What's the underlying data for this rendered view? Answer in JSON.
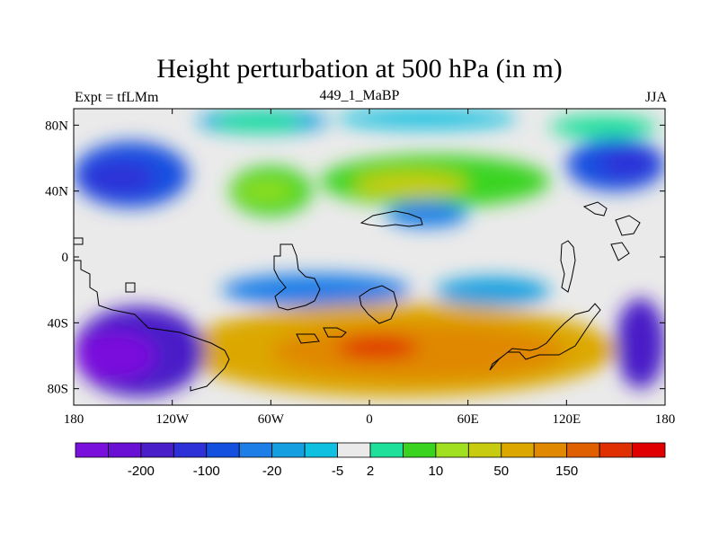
{
  "figure": {
    "title": "Height perturbation at 500 hPa (in m)",
    "subtitle_left": "Expt = tfLMm",
    "subtitle_center": "449_1_MaBP",
    "subtitle_right": "JJA"
  },
  "chart_data": {
    "type": "heatmap",
    "title": "Height perturbation at 500 hPa (in m)",
    "xlabel": "",
    "ylabel": "",
    "xlim": [
      -180,
      180
    ],
    "ylim": [
      -90,
      90
    ],
    "x_ticks": [
      {
        "value": -180,
        "label": "180"
      },
      {
        "value": -120,
        "label": "120W"
      },
      {
        "value": -60,
        "label": "60W"
      },
      {
        "value": 0,
        "label": "0"
      },
      {
        "value": 60,
        "label": "60E"
      },
      {
        "value": 120,
        "label": "120E"
      },
      {
        "value": 180,
        "label": "180"
      }
    ],
    "y_ticks": [
      {
        "value": 80,
        "label": "80N"
      },
      {
        "value": 40,
        "label": "40N"
      },
      {
        "value": 0,
        "label": "0"
      },
      {
        "value": -40,
        "label": "40S"
      },
      {
        "value": -80,
        "label": "80S"
      }
    ],
    "colorbar": {
      "colors": [
        "#7a10dc",
        "#6a10d4",
        "#4a1ec8",
        "#2e30d8",
        "#1450e0",
        "#1e7ee8",
        "#14a0e0",
        "#10c0e0",
        "#eaeaea",
        "#1ee09a",
        "#3ad420",
        "#a0e020",
        "#c8cc10",
        "#dca800",
        "#e08800",
        "#e06000",
        "#e03000",
        "#e00000"
      ],
      "labels": [
        {
          "after_index": 1,
          "text": "-200"
        },
        {
          "after_index": 3,
          "text": "-100"
        },
        {
          "after_index": 5,
          "text": "-20"
        },
        {
          "after_index": 7,
          "text": "-5"
        },
        {
          "after_index": 8,
          "text": "2"
        },
        {
          "after_index": 10,
          "text": "10"
        },
        {
          "after_index": 12,
          "text": "50"
        },
        {
          "after_index": 14,
          "text": "150"
        }
      ]
    },
    "features": [
      {
        "name": "arctic-low",
        "lon": [
          -105,
          -25
        ],
        "lat": [
          75,
          90
        ],
        "level": 6
      },
      {
        "name": "arctic-low-east",
        "lon": [
          -20,
          90
        ],
        "lat": [
          78,
          90
        ],
        "level": 7
      },
      {
        "name": "arctic-positive-ring",
        "lon": [
          -95,
          -40
        ],
        "lat": [
          76,
          88
        ],
        "level": 9
      },
      {
        "name": "arctic-positive-ne",
        "lon": [
          110,
          175
        ],
        "lat": [
          72,
          86
        ],
        "level": 9
      },
      {
        "name": "north-pacific-low",
        "lon": [
          -180,
          -110
        ],
        "lat": [
          30,
          70
        ],
        "level": 4
      },
      {
        "name": "north-pacific-low-core",
        "lon": [
          -175,
          -130
        ],
        "lat": [
          38,
          58
        ],
        "level": 3
      },
      {
        "name": "north-atlantic-high",
        "lon": [
          -85,
          -35
        ],
        "lat": [
          25,
          55
        ],
        "level": 10
      },
      {
        "name": "north-atlantic-high-core",
        "lon": [
          -80,
          -45
        ],
        "lat": [
          35,
          45
        ],
        "level": 11
      },
      {
        "name": "eurasia-high",
        "lon": [
          -30,
          110
        ],
        "lat": [
          30,
          62
        ],
        "level": 10
      },
      {
        "name": "eurasia-high-core",
        "lon": [
          -10,
          60
        ],
        "lat": [
          36,
          52
        ],
        "level": 12
      },
      {
        "name": "mid-eurasia-low",
        "lon": [
          10,
          60
        ],
        "lat": [
          18,
          34
        ],
        "level": 5
      },
      {
        "name": "nw-pacific-low",
        "lon": [
          120,
          180
        ],
        "lat": [
          40,
          72
        ],
        "level": 4
      },
      {
        "name": "nw-pacific-low-core",
        "lon": [
          140,
          175
        ],
        "lat": [
          48,
          66
        ],
        "level": 3
      },
      {
        "name": "tropical-low",
        "lon": [
          -90,
          25
        ],
        "lat": [
          -30,
          -10
        ],
        "level": 5
      },
      {
        "name": "tropical-low-east",
        "lon": [
          40,
          110
        ],
        "lat": [
          -30,
          -12
        ],
        "level": 6
      },
      {
        "name": "southern-ocean-high",
        "lon": [
          -115,
          150
        ],
        "lat": [
          -85,
          -28
        ],
        "level": 13
      },
      {
        "name": "southern-ocean-high-core",
        "lon": [
          -60,
          120
        ],
        "lat": [
          -75,
          -40
        ],
        "level": 14
      },
      {
        "name": "southern-ocean-max",
        "lon": [
          -20,
          30
        ],
        "lat": [
          -62,
          -48
        ],
        "level": 16
      },
      {
        "name": "south-pacific-low",
        "lon": [
          -180,
          -100
        ],
        "lat": [
          -85,
          -30
        ],
        "level": 2
      },
      {
        "name": "south-pacific-low-core",
        "lon": [
          -180,
          -130
        ],
        "lat": [
          -75,
          -45
        ],
        "level": 0
      },
      {
        "name": "south-pacific-low-east",
        "lon": [
          150,
          180
        ],
        "lat": [
          -80,
          -25
        ],
        "level": 2
      }
    ]
  }
}
